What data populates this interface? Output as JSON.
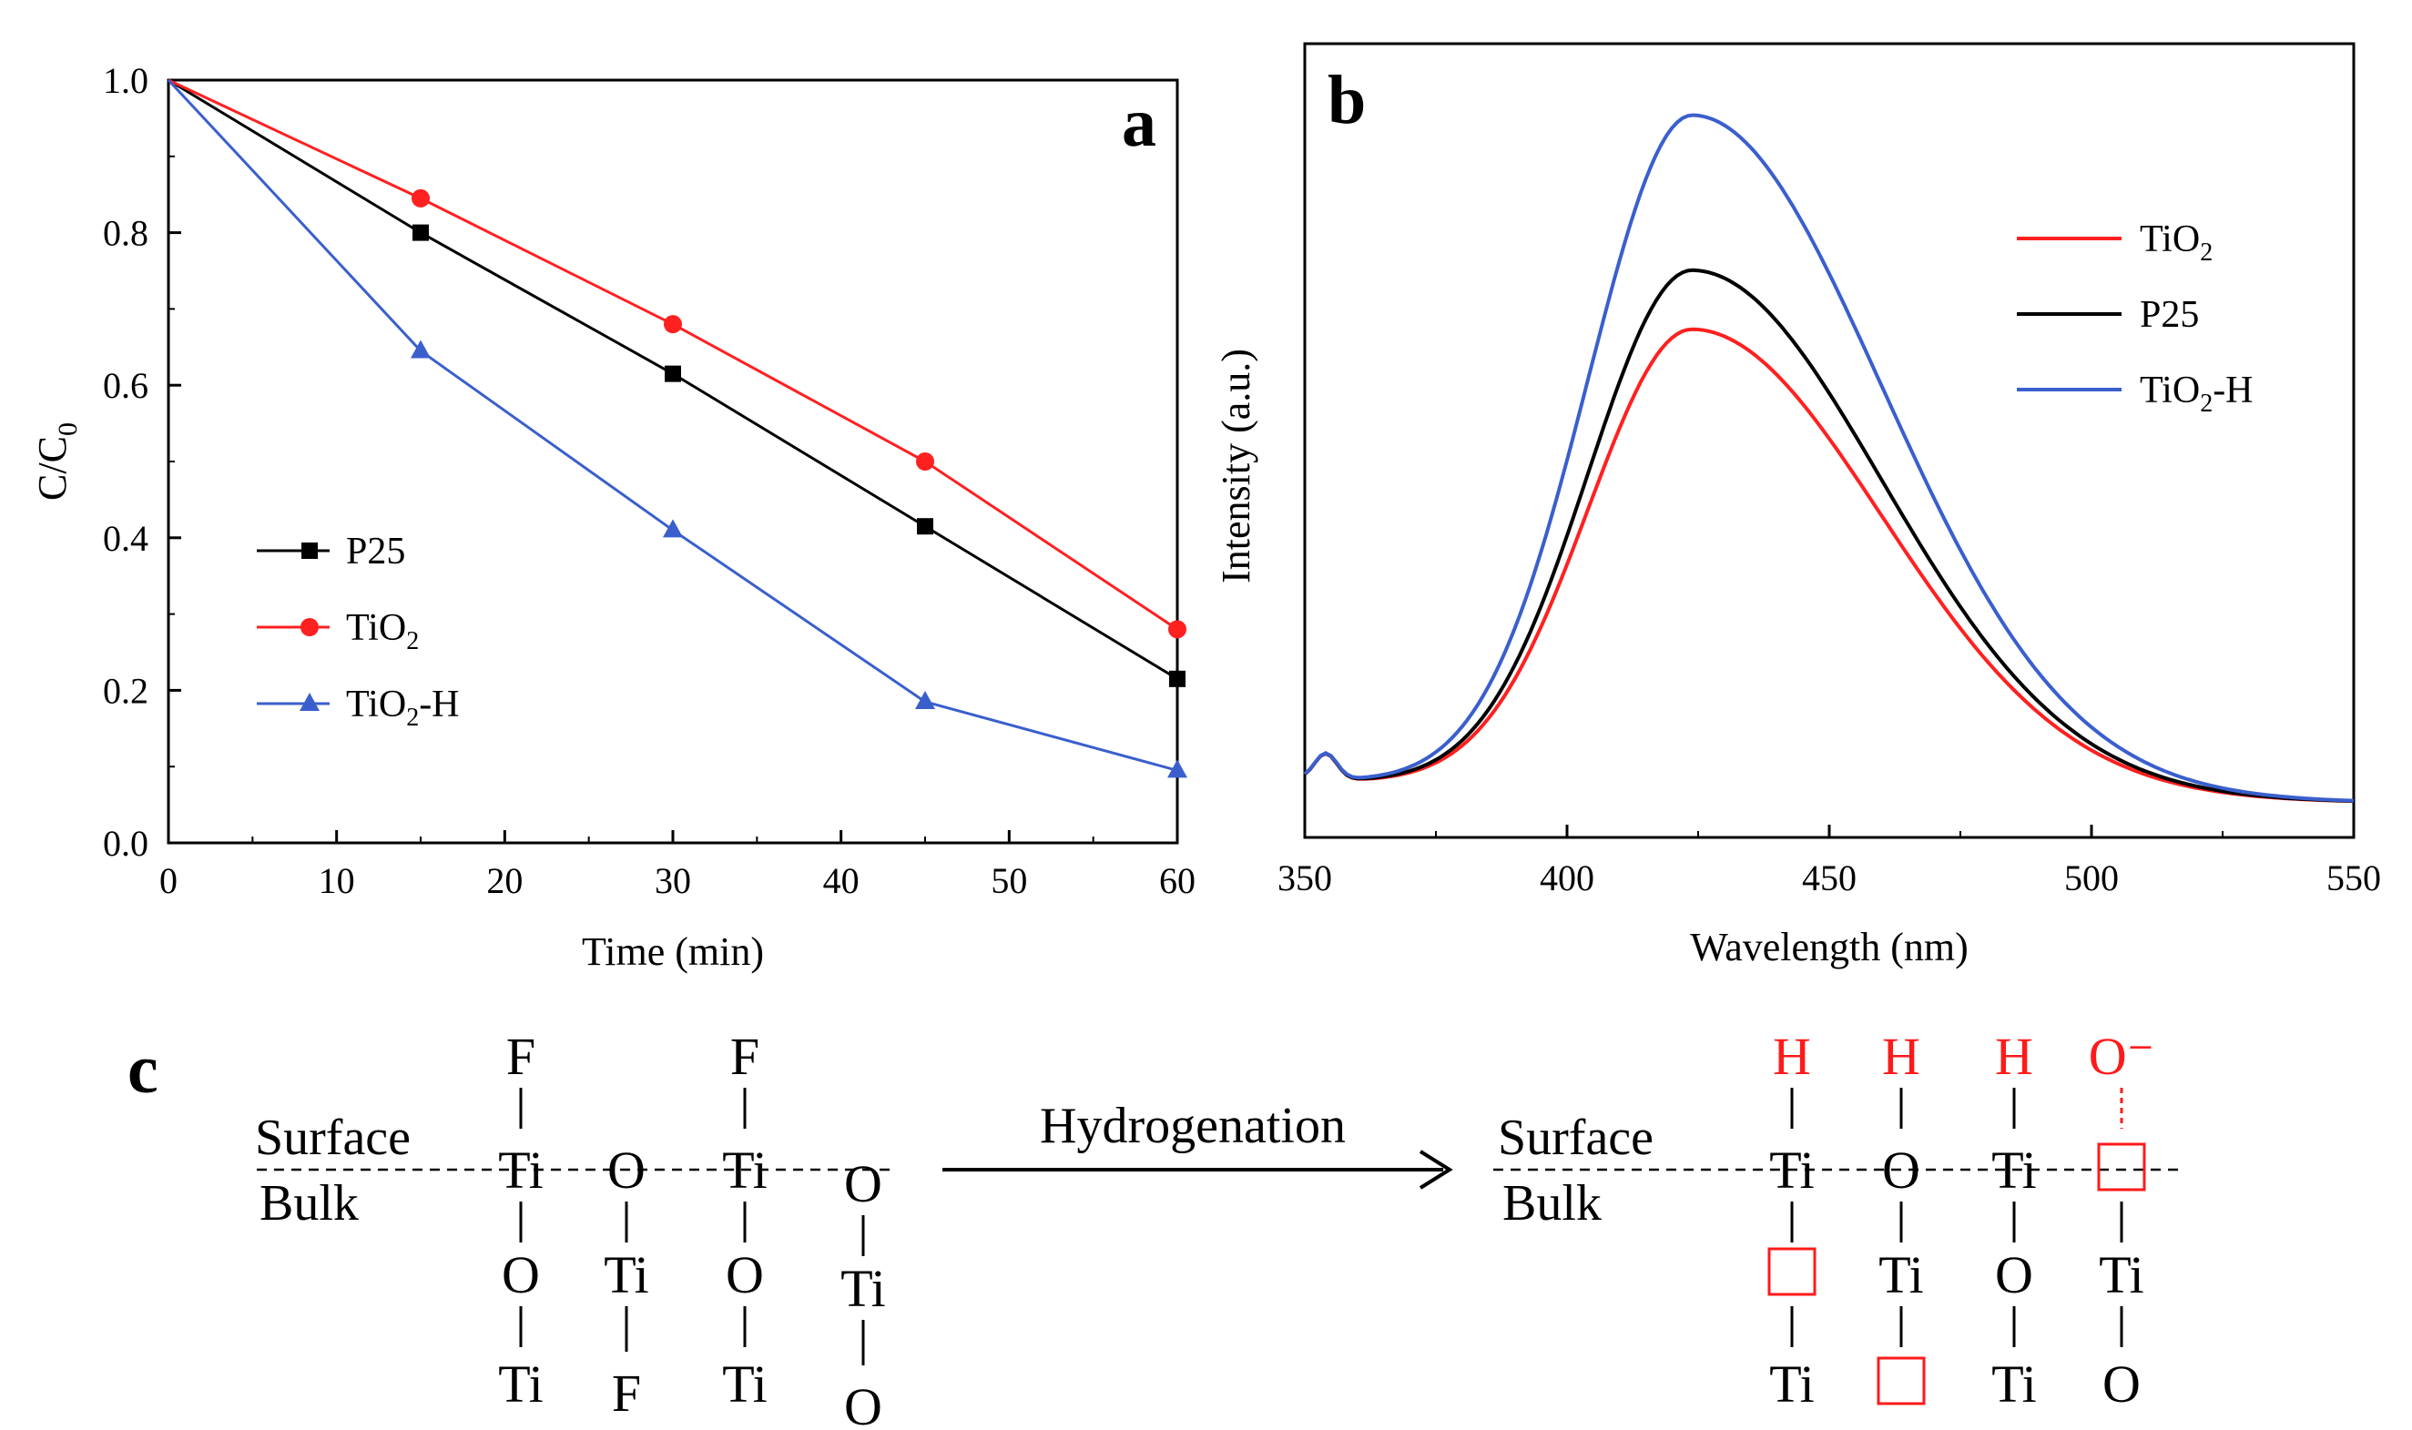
{
  "colors": {
    "P25": "#000000",
    "TiO2": "#ff2020",
    "TiO2-H": "#3a5fcd",
    "red_text": "#ff1a1a",
    "axis": "#000000"
  },
  "chart_data": [
    {
      "panel": "a",
      "type": "line",
      "xlabel": "Time (min)",
      "ylabel_main": "C/C",
      "ylabel_sub": "0",
      "xlim": [
        0,
        60
      ],
      "ylim": [
        0.0,
        1.0
      ],
      "xticks": [
        "0",
        "10",
        "20",
        "30",
        "40",
        "50",
        "60"
      ],
      "yticks": [
        "0.0",
        "0.2",
        "0.4",
        "0.6",
        "0.8",
        "1.0"
      ],
      "legend_position": "lower-left",
      "x": [
        0,
        15,
        30,
        45,
        60
      ],
      "series": [
        {
          "key": "P25",
          "name": "P25",
          "name_main": "P25",
          "name_sub": "",
          "name_tail": "",
          "marker": "square",
          "values": [
            1.0,
            0.8,
            0.615,
            0.415,
            0.215
          ]
        },
        {
          "key": "TiO2",
          "name": "TiO2",
          "name_main": "TiO",
          "name_sub": "2",
          "name_tail": "",
          "marker": "circle",
          "values": [
            1.0,
            0.845,
            0.68,
            0.5,
            0.28
          ]
        },
        {
          "key": "TiO2-H",
          "name": "TiO2-H",
          "name_main": "TiO",
          "name_sub": "2",
          "name_tail": "-H",
          "marker": "triangle",
          "values": [
            1.0,
            0.645,
            0.41,
            0.185,
            0.095
          ]
        }
      ]
    },
    {
      "panel": "b",
      "type": "line",
      "xlabel": "Wavelength (nm)",
      "ylabel": "Intensity (a.u.)",
      "xlim": [
        350,
        550
      ],
      "ylim": [
        0,
        1
      ],
      "xticks": [
        "350",
        "400",
        "450",
        "500",
        "550"
      ],
      "legend_position": "upper-right",
      "y_ticks_unlabeled": true,
      "series": [
        {
          "key": "TiO2",
          "name": "TiO2",
          "name_main": "TiO",
          "name_sub": "2",
          "name_tail": "",
          "peak_x": 424,
          "peak_y": 0.68
        },
        {
          "key": "P25",
          "name": "P25",
          "name_main": "P25",
          "name_sub": "",
          "name_tail": "",
          "peak_x": 424,
          "peak_y": 0.76
        },
        {
          "key": "TiO2-H",
          "name": "TiO2-H",
          "name_main": "TiO",
          "name_sub": "2",
          "name_tail": "-H",
          "peak_x": 425,
          "peak_y": 0.97
        }
      ]
    }
  ],
  "scheme": {
    "panel_label": "c",
    "surface_label": "Surface",
    "bulk_label": "Bulk",
    "arrow_label": "Hydrogenation",
    "before": {
      "top": [
        "F",
        "",
        "F",
        ""
      ],
      "surface": [
        "Ti",
        "O",
        "Ti",
        "O"
      ],
      "row2": [
        "O",
        "Ti",
        "O",
        "Ti"
      ],
      "row3": [
        "Ti",
        "F",
        "Ti",
        "O"
      ]
    },
    "after": {
      "top": [
        "H",
        "H",
        "H",
        "O⁻"
      ],
      "surface": [
        "Ti",
        "O",
        "Ti",
        ""
      ],
      "row2": [
        "",
        "Ti",
        "O",
        "Ti"
      ],
      "row3": [
        "Ti",
        "",
        "Ti",
        "O"
      ]
    }
  }
}
